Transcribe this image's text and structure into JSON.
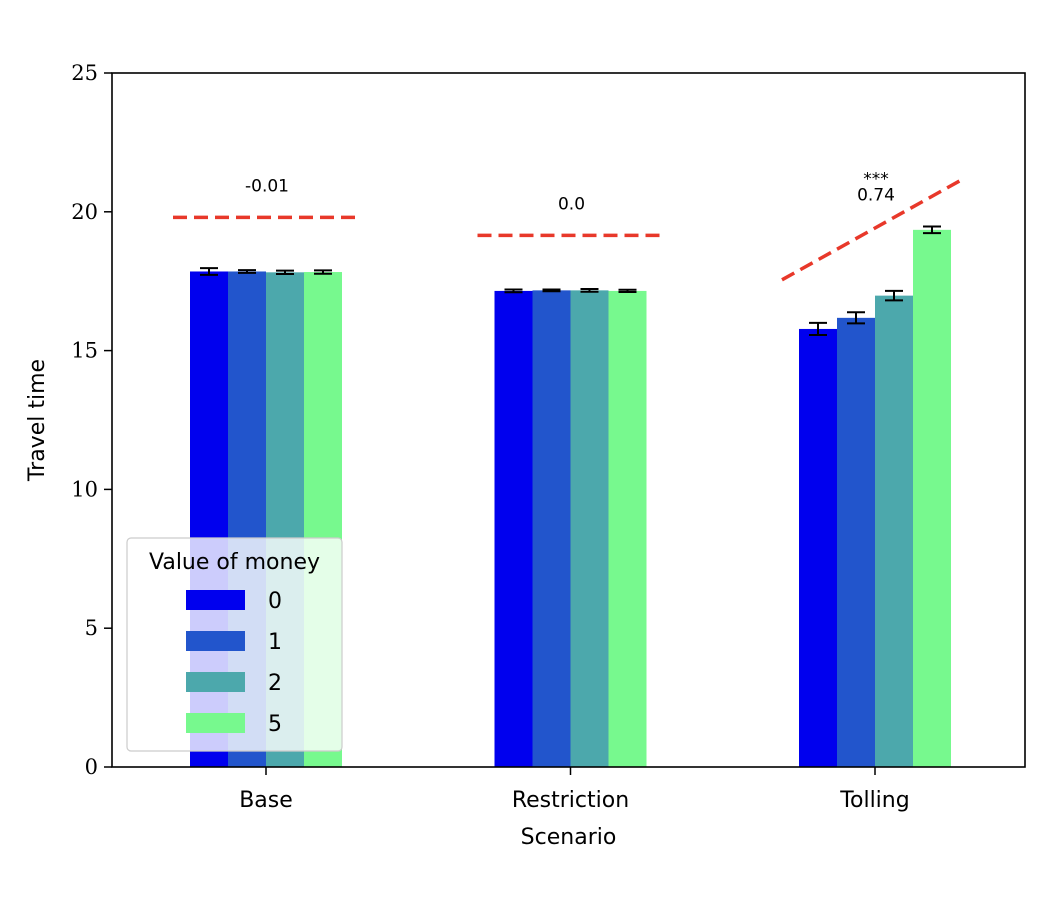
{
  "chart_data": {
    "type": "bar",
    "xlabel": "Scenario",
    "ylabel": "Travel time",
    "ylim": [
      0,
      25
    ],
    "yticks": [
      0,
      5,
      10,
      15,
      20,
      25
    ],
    "categories": [
      "Base",
      "Restriction",
      "Tolling"
    ],
    "legend": {
      "title": "Value of money",
      "placement": "lower-left"
    },
    "series": [
      {
        "name": "0",
        "color": "#0000ee",
        "values": [
          17.85,
          17.15,
          15.78
        ],
        "errors": [
          0.12,
          0.05,
          0.22
        ]
      },
      {
        "name": "1",
        "color": "#2255cc",
        "values": [
          17.85,
          17.17,
          16.18
        ],
        "errors": [
          0.05,
          0.03,
          0.2
        ]
      },
      {
        "name": "2",
        "color": "#4ca8ac",
        "values": [
          17.82,
          17.17,
          16.98
        ],
        "errors": [
          0.06,
          0.05,
          0.17
        ]
      },
      {
        "name": "5",
        "color": "#77f98e",
        "values": [
          17.83,
          17.15,
          19.35
        ],
        "errors": [
          0.06,
          0.04,
          0.12
        ]
      }
    ],
    "trend_lines": [
      {
        "category": "Base",
        "start": 19.8,
        "end": 19.8,
        "label": "-0.01",
        "stars": ""
      },
      {
        "category": "Restriction",
        "start": 19.15,
        "end": 19.15,
        "label": "0.0",
        "stars": ""
      },
      {
        "category": "Tolling",
        "start": 17.55,
        "end": 21.2,
        "label": "0.74",
        "stars": "***"
      }
    ],
    "trend_color": "#e8382a",
    "grid": false
  }
}
